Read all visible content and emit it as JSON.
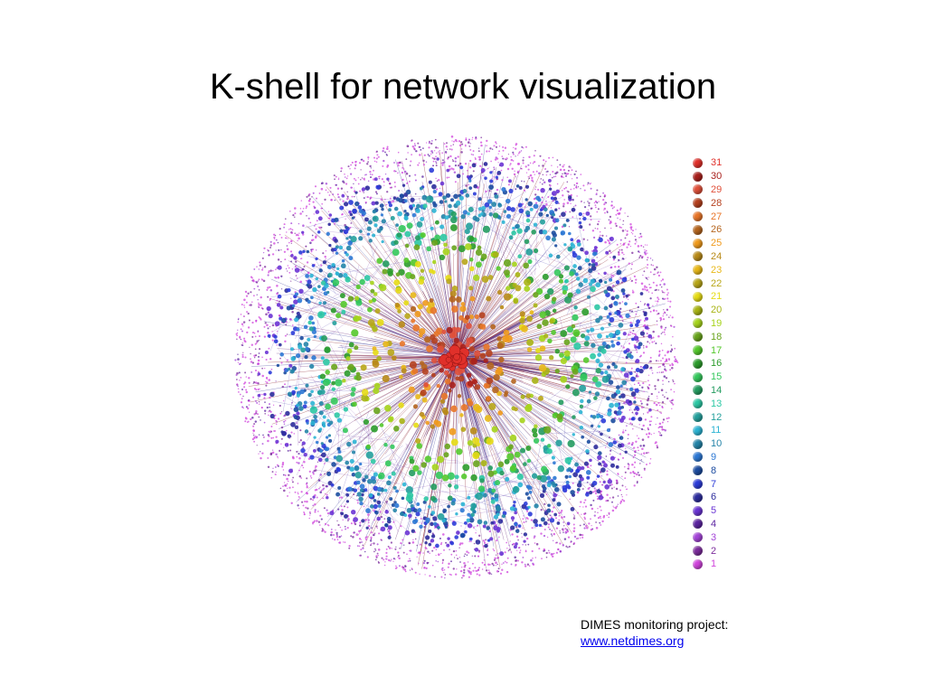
{
  "slide": {
    "title": "K-shell for network visualization"
  },
  "legend": {
    "items": [
      {
        "label": "31",
        "color": "#e0302a"
      },
      {
        "label": "30",
        "color": "#a8201c"
      },
      {
        "label": "29",
        "color": "#e0503a"
      },
      {
        "label": "28",
        "color": "#b5401e"
      },
      {
        "label": "27",
        "color": "#e87528"
      },
      {
        "label": "26",
        "color": "#b5651e"
      },
      {
        "label": "25",
        "color": "#f09a1c"
      },
      {
        "label": "24",
        "color": "#b88a18"
      },
      {
        "label": "23",
        "color": "#e8b818"
      },
      {
        "label": "22",
        "color": "#b8a618"
      },
      {
        "label": "21",
        "color": "#e6dc14"
      },
      {
        "label": "20",
        "color": "#a8b414"
      },
      {
        "label": "19",
        "color": "#a6d41c"
      },
      {
        "label": "18",
        "color": "#68a41c"
      },
      {
        "label": "17",
        "color": "#54c82c"
      },
      {
        "label": "16",
        "color": "#2c9c2c"
      },
      {
        "label": "15",
        "color": "#34c85c"
      },
      {
        "label": "14",
        "color": "#249c60"
      },
      {
        "label": "13",
        "color": "#2cc8a4"
      },
      {
        "label": "12",
        "color": "#24a09c"
      },
      {
        "label": "11",
        "color": "#2cb4d4"
      },
      {
        "label": "10",
        "color": "#2484a8"
      },
      {
        "label": "9",
        "color": "#2c78d4"
      },
      {
        "label": "8",
        "color": "#1c4ca0"
      },
      {
        "label": "7",
        "color": "#2c3cd8"
      },
      {
        "label": "6",
        "color": "#2c2c9c"
      },
      {
        "label": "5",
        "color": "#6a34d4"
      },
      {
        "label": "4",
        "color": "#5c24a0"
      },
      {
        "label": "3",
        "color": "#a444d8"
      },
      {
        "label": "2",
        "color": "#7c2c9c"
      },
      {
        "label": "1",
        "color": "#d044dc"
      }
    ]
  },
  "credit": {
    "line1": "DIMES monitoring project:",
    "link": "www.netdimes.org"
  }
}
